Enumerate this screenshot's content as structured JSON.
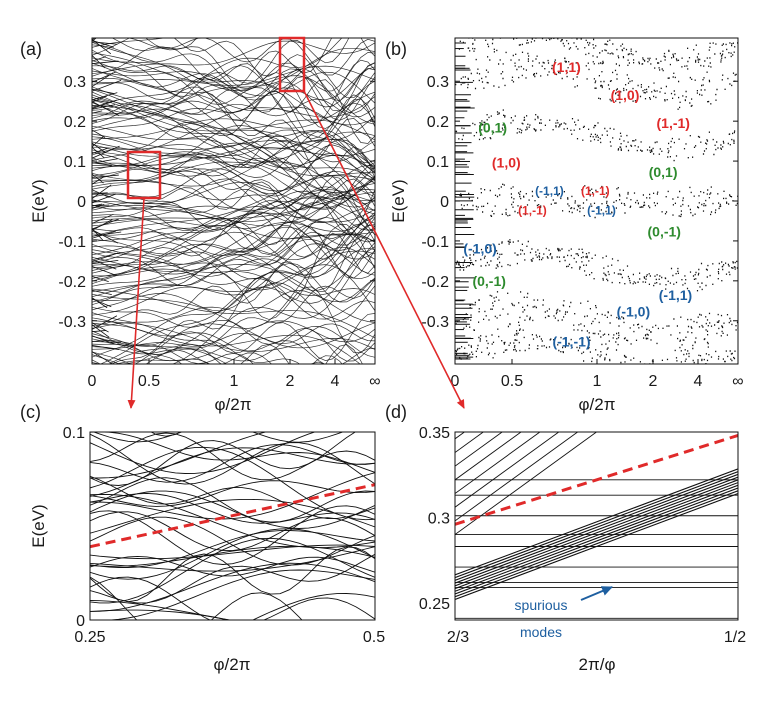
{
  "figure": {
    "panel_labels": [
      "(a)",
      "(b)",
      "(c)",
      "(d)"
    ]
  },
  "colors": {
    "red": "#e02a2a",
    "green": "#2e8b2e",
    "blue": "#1e5fa0",
    "ink": "#111111"
  },
  "chart_data": [
    {
      "id": "a",
      "type": "line",
      "title": "",
      "xlabel": "φ/2π",
      "ylabel": "E(eV)",
      "ylim": [
        -0.35,
        0.35
      ],
      "x_ticks": [
        "0",
        "0.5",
        "1",
        "2",
        "4",
        "∞"
      ],
      "y_ticks": [
        "0.3",
        "0.2",
        "0.1",
        "0",
        "-0.1",
        "-0.2",
        "-0.3"
      ],
      "y_tick_values": [
        0.3,
        0.2,
        0.1,
        0,
        -0.1,
        -0.2,
        -0.3
      ],
      "zoom_boxes": [
        {
          "name": "zoom-box-c",
          "x_range": [
            0.25,
            0.5
          ],
          "y_range": [
            0.0,
            0.1
          ]
        },
        {
          "name": "zoom-box-d",
          "x_range": [
            1.5,
            2.0
          ],
          "y_range": [
            0.25,
            0.35
          ]
        }
      ]
    },
    {
      "id": "b",
      "type": "scatter",
      "title": "",
      "xlabel": "φ/2π",
      "ylabel": "E(eV)",
      "ylim": [
        -0.35,
        0.35
      ],
      "x_ticks": [
        "0",
        "0.5",
        "1",
        "2",
        "4",
        "∞"
      ],
      "y_ticks": [
        "0.3",
        "0.2",
        "0.1",
        "0",
        "-0.1",
        "-0.2",
        "-0.3"
      ],
      "y_tick_values": [
        0.3,
        0.2,
        0.1,
        0,
        -0.1,
        -0.2,
        -0.3
      ],
      "annotations": [
        {
          "text": "(1,1)",
          "color": "red",
          "x": 0.82,
          "y": 0.285
        },
        {
          "text": "(1,0)",
          "color": "red",
          "x": 1.5,
          "y": 0.225
        },
        {
          "text": "(1,-1)",
          "color": "red",
          "x": 2.9,
          "y": 0.165
        },
        {
          "text": "(0,1)",
          "color": "green",
          "x": 0.33,
          "y": 0.155
        },
        {
          "text": "(1,0)",
          "color": "red",
          "x": 0.45,
          "y": 0.08
        },
        {
          "text": "(0,1)",
          "color": "green",
          "x": 2.45,
          "y": 0.06
        },
        {
          "text": "(-1,1)",
          "color": "blue",
          "x": 0.72,
          "y": 0.02
        },
        {
          "text": "(1,-1)",
          "color": "red",
          "x": 0.99,
          "y": 0.02
        },
        {
          "text": "(1,-1)",
          "color": "red",
          "x": 0.62,
          "y": -0.022
        },
        {
          "text": "(-1,1)",
          "color": "blue",
          "x": 1.08,
          "y": -0.022
        },
        {
          "text": "(0,-1)",
          "color": "green",
          "x": 2.5,
          "y": -0.068
        },
        {
          "text": "(-1,0)",
          "color": "blue",
          "x": 0.22,
          "y": -0.105
        },
        {
          "text": "(0,-1)",
          "color": "green",
          "x": 0.3,
          "y": -0.175
        },
        {
          "text": "(-1,1)",
          "color": "blue",
          "x": 3.0,
          "y": -0.205
        },
        {
          "text": "(-1,0)",
          "color": "blue",
          "x": 1.65,
          "y": -0.24
        },
        {
          "text": "(-1,-1)",
          "color": "blue",
          "x": 0.85,
          "y": -0.305
        }
      ]
    },
    {
      "id": "c",
      "type": "line",
      "title": "",
      "xlabel": "φ/2π",
      "ylabel": "E(eV)",
      "xlim": [
        0.25,
        0.5
      ],
      "ylim": [
        0,
        0.1
      ],
      "x_ticks": [
        "0.25",
        "0.5"
      ],
      "y_ticks": [
        "0.1",
        "0"
      ],
      "y_tick_values": [
        0.1,
        0
      ],
      "dashed_line": {
        "color": "red",
        "from": [
          0.25,
          0.039
        ],
        "to": [
          0.5,
          0.072
        ]
      }
    },
    {
      "id": "d",
      "type": "line",
      "title": "",
      "xlabel": "2π/φ",
      "ylabel": "",
      "xlim": [
        0.6667,
        0.5
      ],
      "ylim": [
        0.24,
        0.35
      ],
      "x_ticks": [
        "2/3",
        "1/2"
      ],
      "y_ticks": [
        "0.35",
        "0.3",
        "0.25"
      ],
      "y_tick_values": [
        0.35,
        0.3,
        0.25
      ],
      "dashed_line": {
        "color": "red",
        "from": [
          0.6667,
          0.296
        ],
        "to": [
          0.5,
          0.348
        ]
      },
      "annotation": {
        "lines": [
          "spurious",
          "modes"
        ],
        "color": "blue"
      }
    }
  ]
}
